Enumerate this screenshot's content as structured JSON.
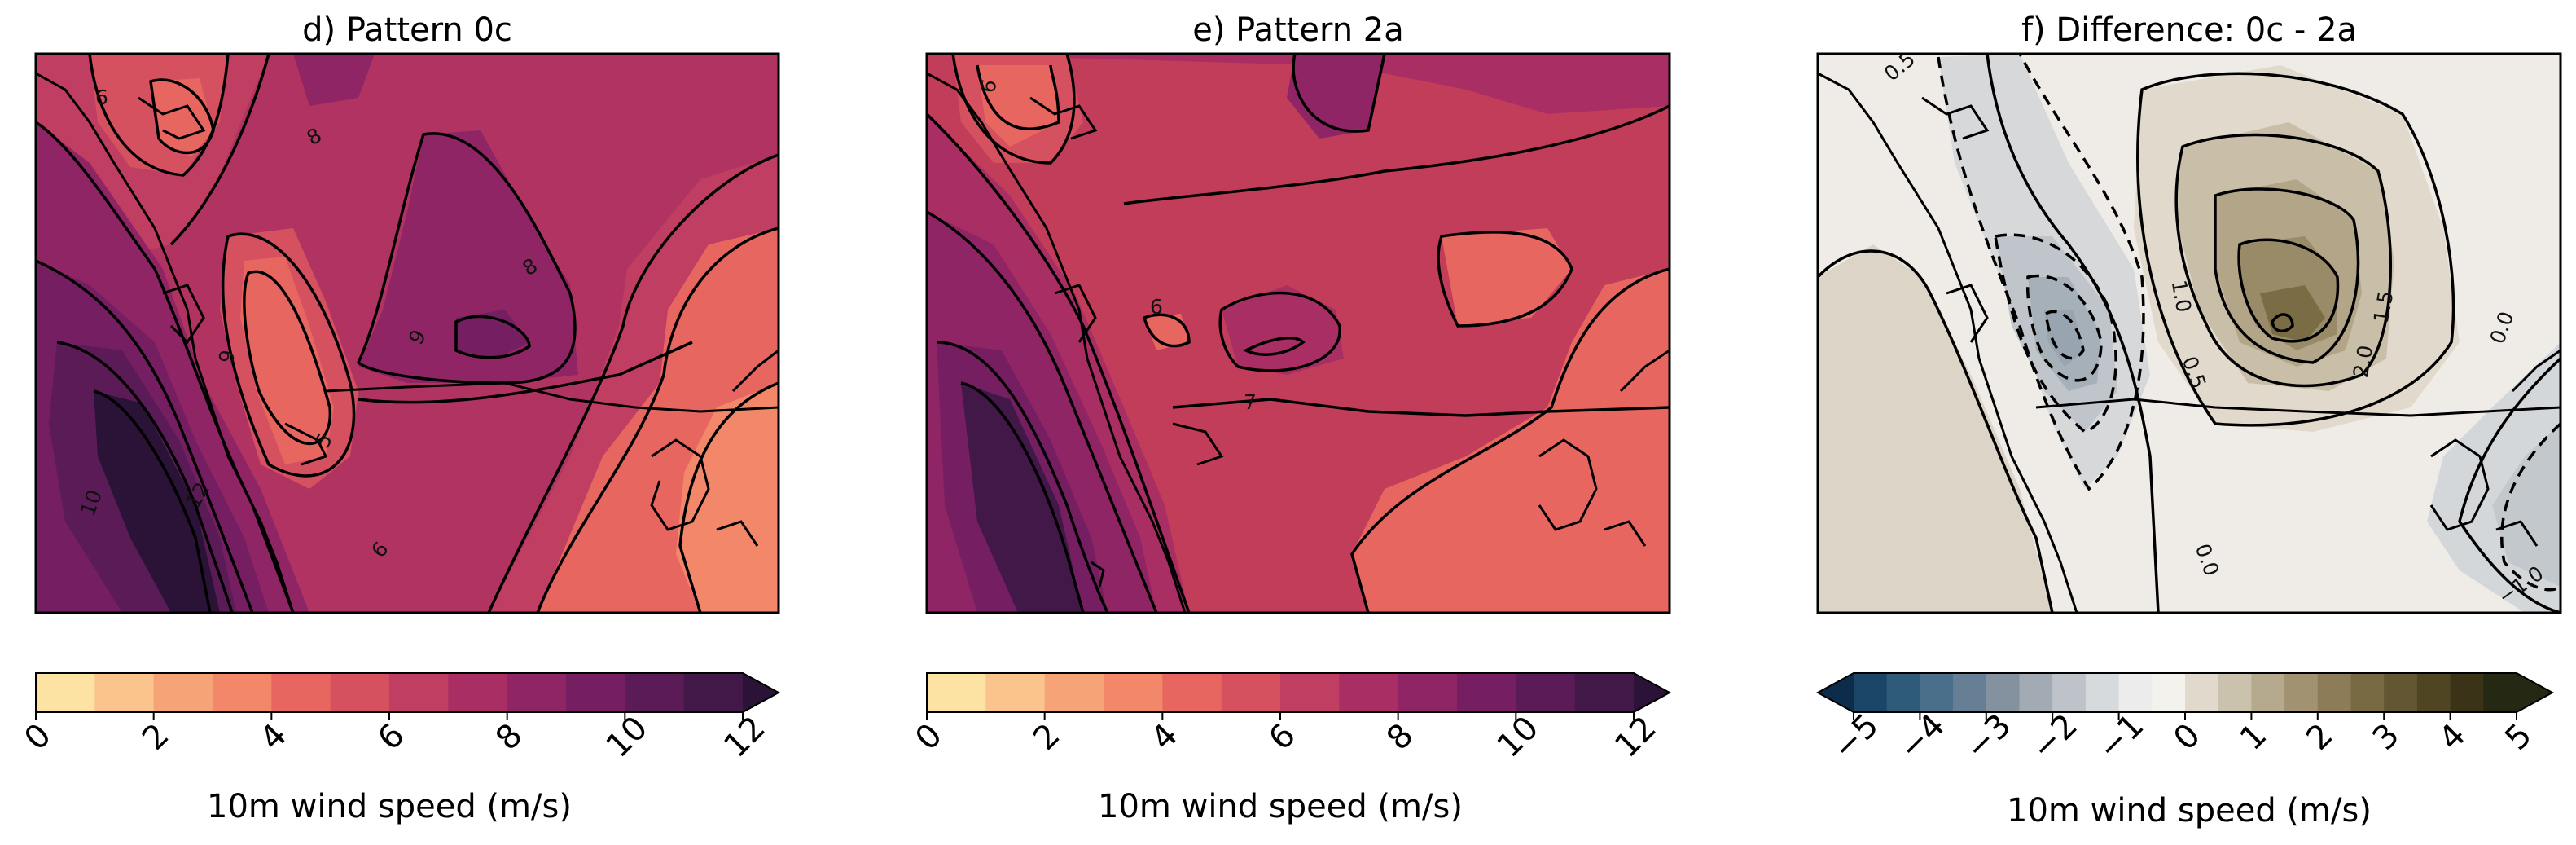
{
  "chart_data": [
    {
      "type": "heatmap",
      "title": "d) Pattern 0c",
      "colorbar": {
        "label": "10m wind speed (m/s)",
        "ticks": [
          "0",
          "2",
          "4",
          "6",
          "8",
          "10",
          "12"
        ],
        "levels": [
          0,
          1,
          2,
          3,
          4,
          5,
          6,
          7,
          8,
          9,
          10,
          11,
          12
        ],
        "extend": "max",
        "colors": [
          "#fde3a3",
          "#fac48c",
          "#f7a378",
          "#f2876a",
          "#e76760",
          "#d5515f",
          "#c03e61",
          "#a82e63",
          "#8f2565",
          "#751f62",
          "#5b1b57",
          "#411847",
          "#2a1337"
        ]
      },
      "background_color": "#b03362",
      "contour_labels": [
        "6",
        "8",
        "8",
        "9",
        "9",
        "5",
        "6",
        "10",
        "12"
      ]
    },
    {
      "type": "heatmap",
      "title": "e) Pattern 2a",
      "colorbar": {
        "label": "10m wind speed (m/s)",
        "ticks": [
          "0",
          "2",
          "4",
          "6",
          "8",
          "10",
          "12"
        ],
        "levels": [
          0,
          1,
          2,
          3,
          4,
          5,
          6,
          7,
          8,
          9,
          10,
          11,
          12
        ],
        "extend": "max",
        "colors": [
          "#fde3a3",
          "#fac48c",
          "#f7a378",
          "#f2876a",
          "#e76760",
          "#d5515f",
          "#c03e61",
          "#a82e63",
          "#8f2565",
          "#751f62",
          "#5b1b57",
          "#411847",
          "#2a1337"
        ]
      },
      "background_color": "#c23d5a",
      "contour_labels": [
        "6",
        "6",
        "7"
      ]
    },
    {
      "type": "heatmap",
      "title": "f) Difference: 0c - 2a",
      "colorbar": {
        "label": "10m wind speed (m/s)",
        "ticks": [
          "−5",
          "−4",
          "−3",
          "−2",
          "−1",
          "0",
          "1",
          "2",
          "3",
          "4",
          "5"
        ],
        "levels": [
          -5,
          -4.5,
          -4,
          -3.5,
          -3,
          -2.5,
          -2,
          -1.5,
          -1,
          -0.5,
          0,
          0.5,
          1,
          1.5,
          2,
          2.5,
          3,
          3.5,
          4,
          4.5,
          5
        ],
        "extend": "both",
        "colors": [
          "#0d2b4a",
          "#1a4566",
          "#2f5b7b",
          "#4a6f8a",
          "#677f94",
          "#84929f",
          "#a2abb3",
          "#bdc3c8",
          "#d7dadc",
          "#ececec",
          "#f4f2ed",
          "#e0d9cc",
          "#cbc2ad",
          "#b6aa8e",
          "#a19371",
          "#8c7d58",
          "#776a43",
          "#625732",
          "#4f4523",
          "#3b3318",
          "#252812"
        ]
      },
      "background_color": "#efece8",
      "contour_labels": [
        "0.5",
        "1.0",
        "0.5",
        "1.5",
        "2.0",
        "0.0",
        "0.0",
        "−1.0"
      ]
    }
  ],
  "colors": {
    "frame": "#000000",
    "coastline": "#000000"
  }
}
